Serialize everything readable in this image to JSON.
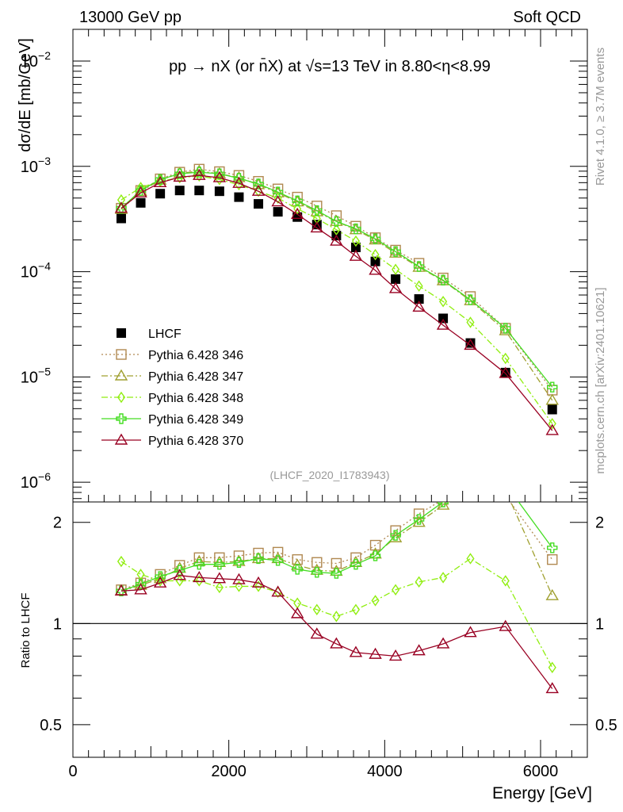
{
  "header": {
    "left": "13000 GeV pp",
    "right": "Soft QCD"
  },
  "side_labels": {
    "rivet": "Rivet 4.1.0, ≥ 3.7M events",
    "mcplots": "mcplots.cern.ch [arXiv:2401.10621]"
  },
  "chart_data": [
    {
      "type": "scatter",
      "panel": "main",
      "title": "pp → nX (or n̄X) at √s=13 TeV in 8.80<η<8.99",
      "analysis_tag": "(LHCF_2020_I1783943)",
      "ylabel": "dσ/dE [mb/GeV]",
      "yscale": "log",
      "ylim": [
        6.5e-07,
        0.02
      ],
      "xlim": [
        0,
        6600
      ],
      "y_ticks": [
        {
          "value": 1e-06,
          "base": "10",
          "exp": "−6"
        },
        {
          "value": 1e-05,
          "base": "10",
          "exp": "−5"
        },
        {
          "value": 0.0001,
          "base": "10",
          "exp": "−4"
        },
        {
          "value": 0.001,
          "base": "10",
          "exp": "−3"
        },
        {
          "value": 0.01,
          "base": "10",
          "exp": "−2"
        }
      ],
      "x": [
        620,
        870,
        1120,
        1370,
        1620,
        1880,
        2130,
        2380,
        2630,
        2880,
        3130,
        3380,
        3630,
        3880,
        4140,
        4440,
        4750,
        5100,
        5550,
        6150
      ],
      "series": [
        {
          "name": "LHCF",
          "style": "data",
          "color": "#000000",
          "values": [
            0.00032,
            0.00045,
            0.00055,
            0.00059,
            0.00059,
            0.00058,
            0.00051,
            0.00044,
            0.00037,
            0.00033,
            0.00028,
            0.00022,
            0.00017,
            0.000125,
            8.5e-05,
            5.5e-05,
            3.6e-05,
            2.1e-05,
            1.1e-05,
            4.9e-06
          ]
        },
        {
          "name": "Pythia 6.428 346",
          "style": "dotted",
          "marker": "square",
          "color": "#b08850",
          "values": [
            0.0004,
            0.00059,
            0.00076,
            0.00088,
            0.00094,
            0.00089,
            0.00082,
            0.00072,
            0.00061,
            0.00051,
            0.00042,
            0.00034,
            0.00027,
            0.00021,
            0.00016,
            0.00012,
            8.7e-05,
            5.8e-05,
            2.9e-05,
            7.5e-06
          ]
        },
        {
          "name": "Pythia 6.428 347",
          "style": "dashdot",
          "marker": "triangle",
          "color": "#a0a030",
          "values": [
            0.00039,
            0.00058,
            0.00074,
            0.00086,
            0.0009,
            0.00085,
            0.00078,
            0.00067,
            0.00056,
            0.00046,
            0.00037,
            0.0003,
            0.00025,
            0.0002,
            0.00015,
            0.00011,
            8.2e-05,
            5.3e-05,
            2.75e-05,
            6e-06
          ]
        },
        {
          "name": "Pythia 6.428 348",
          "style": "dashdot",
          "marker": "diamond",
          "color": "#90ee10",
          "values": [
            0.00048,
            0.00063,
            0.00072,
            0.00078,
            0.00081,
            0.00075,
            0.00067,
            0.00058,
            0.0005,
            0.000395,
            0.00032,
            0.00025,
            0.000195,
            0.000145,
            0.000105,
            7.3e-05,
            5.2e-05,
            3.3e-05,
            1.5e-05,
            3.6e-06
          ]
        },
        {
          "name": "Pythia 6.428 349",
          "style": "solid",
          "marker": "cross",
          "color": "#44dd22",
          "values": [
            0.0004,
            0.00059,
            0.00075,
            0.00085,
            0.00088,
            0.00085,
            0.00077,
            0.00068,
            0.00057,
            0.00047,
            0.00038,
            0.0003,
            0.000255,
            0.000205,
            0.000155,
            0.000112,
            8.3e-05,
            5.4e-05,
            2.9e-05,
            8e-06
          ]
        },
        {
          "name": "Pythia 6.428 370",
          "style": "solid",
          "marker": "triangle",
          "color": "#990022",
          "values": [
            0.0004,
            0.00056,
            0.0007,
            0.00079,
            0.00082,
            0.00078,
            0.00069,
            0.00058,
            0.00046,
            0.00035,
            0.00026,
            0.000195,
            0.00014,
            0.000103,
            6.9e-05,
            4.6e-05,
            3.1e-05,
            2e-05,
            1.08e-05,
            3.1e-06
          ]
        }
      ]
    },
    {
      "type": "line",
      "panel": "ratio",
      "ylabel": "Ratio to LHCF",
      "xlabel": "Energy [GeV]",
      "yscale": "log",
      "ylim": [
        0.4,
        2.3
      ],
      "xlim": [
        0,
        6600
      ],
      "x_ticks": [
        {
          "value": 0,
          "label": "0"
        },
        {
          "value": 2000,
          "label": "2000"
        },
        {
          "value": 4000,
          "label": "4000"
        },
        {
          "value": 6000,
          "label": "6000"
        }
      ],
      "y_ticks": [
        {
          "value": 0.5,
          "label": "0.5"
        },
        {
          "value": 1,
          "label": "1"
        },
        {
          "value": 2,
          "label": "2"
        }
      ],
      "x": [
        620,
        870,
        1120,
        1370,
        1620,
        1880,
        2130,
        2380,
        2630,
        2880,
        3130,
        3380,
        3630,
        3880,
        4140,
        4440,
        4750,
        5100,
        5550,
        6150
      ],
      "series": [
        {
          "name": "Pythia 6.428 346",
          "marker": "square",
          "color": "#b08850",
          "values": [
            1.26,
            1.32,
            1.4,
            1.49,
            1.57,
            1.57,
            1.59,
            1.62,
            1.63,
            1.55,
            1.52,
            1.51,
            1.57,
            1.71,
            1.89,
            2.12,
            2.34,
            2.55,
            2.4,
            1.55
          ]
        },
        {
          "name": "Pythia 6.428 347",
          "marker": "triangle",
          "color": "#a0a030",
          "values": [
            1.25,
            1.3,
            1.36,
            1.46,
            1.53,
            1.52,
            1.53,
            1.56,
            1.56,
            1.49,
            1.44,
            1.43,
            1.52,
            1.61,
            1.8,
            2.0,
            2.25,
            2.5,
            2.5,
            1.21
          ]
        },
        {
          "name": "Pythia 6.428 348",
          "marker": "diamond",
          "color": "#90ee10",
          "values": [
            1.53,
            1.4,
            1.34,
            1.34,
            1.34,
            1.28,
            1.29,
            1.29,
            1.24,
            1.15,
            1.1,
            1.05,
            1.1,
            1.17,
            1.26,
            1.33,
            1.37,
            1.56,
            1.34,
            0.74
          ]
        },
        {
          "name": "Pythia 6.428 349",
          "marker": "cross",
          "color": "#44dd22",
          "values": [
            1.25,
            1.31,
            1.38,
            1.44,
            1.5,
            1.5,
            1.52,
            1.56,
            1.54,
            1.45,
            1.42,
            1.41,
            1.5,
            1.59,
            1.83,
            2.04,
            2.3,
            2.6,
            2.6,
            1.68
          ]
        },
        {
          "name": "Pythia 6.428 370",
          "marker": "triangle",
          "color": "#990022",
          "values": [
            1.25,
            1.26,
            1.32,
            1.39,
            1.37,
            1.36,
            1.35,
            1.32,
            1.24,
            1.07,
            0.93,
            0.87,
            0.82,
            0.81,
            0.8,
            0.83,
            0.87,
            0.94,
            0.98,
            0.64
          ]
        }
      ]
    }
  ]
}
